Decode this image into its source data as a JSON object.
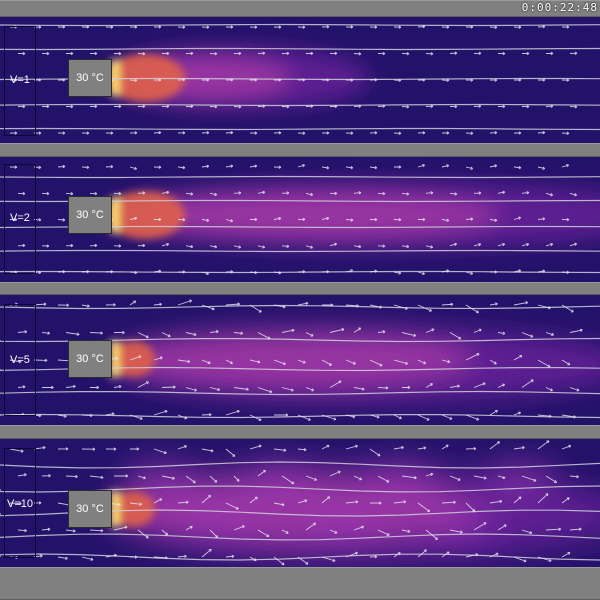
{
  "timer": "0:00:22:48",
  "heater_label": "30 °C",
  "panels": [
    {
      "label": "V=1",
      "velocity": 1
    },
    {
      "label": "V=2",
      "velocity": 2
    },
    {
      "label": "V=5",
      "velocity": 5
    },
    {
      "label": "V=10",
      "velocity": 10
    }
  ],
  "colors": {
    "wall": "#808080",
    "fluid_cold": "#23126a",
    "plume_warm": "#8a2bb0",
    "plume_hot": "#e0604a",
    "heater_edge": "#ffe070",
    "streamline": "#cfcfdc",
    "arrow": "#e6e6ee",
    "text": "#ffffff"
  },
  "icons": [
    "velocity-arrow",
    "streamline"
  ]
}
